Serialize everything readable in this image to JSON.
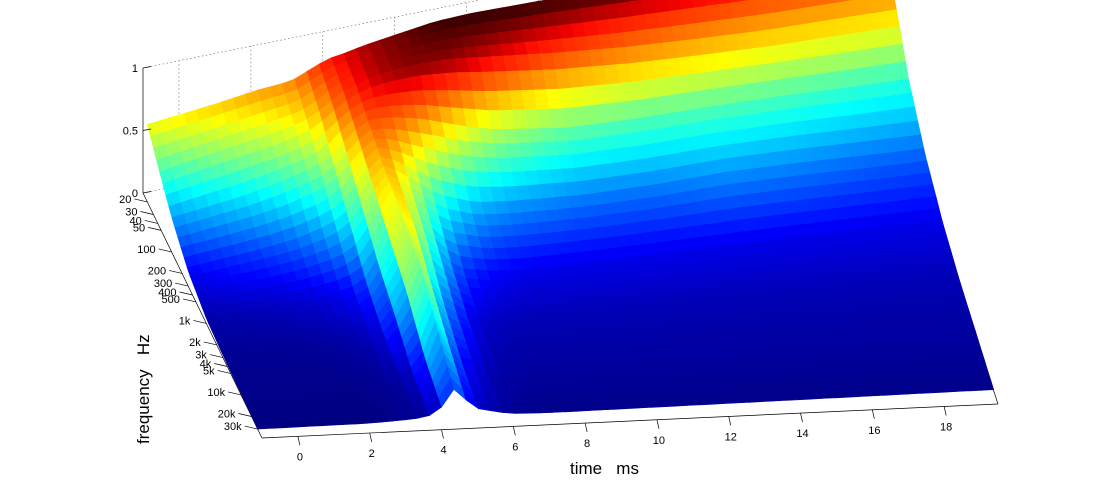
{
  "chart_data": {
    "type": "surface",
    "title": "",
    "xlabel": "time   ms",
    "ylabel": "frequency   Hz",
    "zlabel": "",
    "x_ticks": [
      0,
      2,
      4,
      6,
      8,
      10,
      12,
      14,
      16,
      18
    ],
    "x_range": [
      -1,
      19.5
    ],
    "y_ticks": [
      {
        "value": 20,
        "label": "20"
      },
      {
        "value": 30,
        "label": "30"
      },
      {
        "value": 40,
        "label": "40"
      },
      {
        "value": 50,
        "label": "50"
      },
      {
        "value": 100,
        "label": "100"
      },
      {
        "value": 200,
        "label": "200"
      },
      {
        "value": 300,
        "label": "300"
      },
      {
        "value": 400,
        "label": "400"
      },
      {
        "value": 500,
        "label": "500"
      },
      {
        "value": 1000,
        "label": "1k"
      },
      {
        "value": 2000,
        "label": "2k"
      },
      {
        "value": 3000,
        "label": "3k"
      },
      {
        "value": 4000,
        "label": "4k"
      },
      {
        "value": 5000,
        "label": "5k"
      },
      {
        "value": 10000,
        "label": "10k"
      },
      {
        "value": 20000,
        "label": "20k"
      },
      {
        "value": 30000,
        "label": "30k"
      }
    ],
    "y_scale": "log",
    "y_range": [
      15,
      40000
    ],
    "z_ticks": [
      0,
      0.5,
      1
    ],
    "z_range": [
      0,
      1
    ],
    "colormap": "jet",
    "grid": true,
    "surface": {
      "time_ms": [
        -1,
        0,
        1,
        2,
        3,
        3.5,
        4,
        4.5,
        5,
        6,
        7,
        8,
        10,
        12,
        14,
        16,
        18,
        19.5
      ],
      "frequency_hz": [
        20,
        50,
        100,
        300,
        1000,
        3000,
        10000,
        30000
      ],
      "z": [
        [
          0.62,
          0.65,
          0.68,
          0.72,
          0.74,
          0.8,
          0.86,
          0.88,
          0.91,
          0.95,
          0.99,
          1.0,
          0.99,
          0.97,
          0.95,
          0.92,
          0.9,
          0.88
        ],
        [
          0.42,
          0.47,
          0.52,
          0.56,
          0.62,
          0.7,
          0.8,
          0.86,
          0.9,
          0.93,
          0.92,
          0.88,
          0.8,
          0.74,
          0.7,
          0.67,
          0.66,
          0.65
        ],
        [
          0.28,
          0.32,
          0.36,
          0.42,
          0.5,
          0.58,
          0.72,
          0.8,
          0.8,
          0.74,
          0.64,
          0.56,
          0.48,
          0.46,
          0.46,
          0.45,
          0.43,
          0.42
        ],
        [
          0.12,
          0.15,
          0.18,
          0.22,
          0.3,
          0.4,
          0.58,
          0.72,
          0.62,
          0.4,
          0.3,
          0.27,
          0.24,
          0.24,
          0.26,
          0.25,
          0.23,
          0.22
        ],
        [
          0.04,
          0.05,
          0.06,
          0.08,
          0.12,
          0.2,
          0.42,
          0.7,
          0.5,
          0.18,
          0.12,
          0.1,
          0.1,
          0.1,
          0.1,
          0.1,
          0.1,
          0.1
        ],
        [
          0.02,
          0.02,
          0.02,
          0.03,
          0.05,
          0.1,
          0.3,
          0.62,
          0.3,
          0.08,
          0.05,
          0.05,
          0.05,
          0.05,
          0.05,
          0.05,
          0.05,
          0.05
        ],
        [
          0.01,
          0.01,
          0.01,
          0.01,
          0.02,
          0.04,
          0.1,
          0.45,
          0.15,
          0.04,
          0.03,
          0.03,
          0.03,
          0.03,
          0.03,
          0.03,
          0.03,
          0.03
        ],
        [
          0.0,
          0.0,
          0.0,
          0.0,
          0.01,
          0.02,
          0.05,
          0.25,
          0.08,
          0.02,
          0.01,
          0.01,
          0.01,
          0.01,
          0.01,
          0.01,
          0.01,
          0.01
        ]
      ]
    }
  }
}
